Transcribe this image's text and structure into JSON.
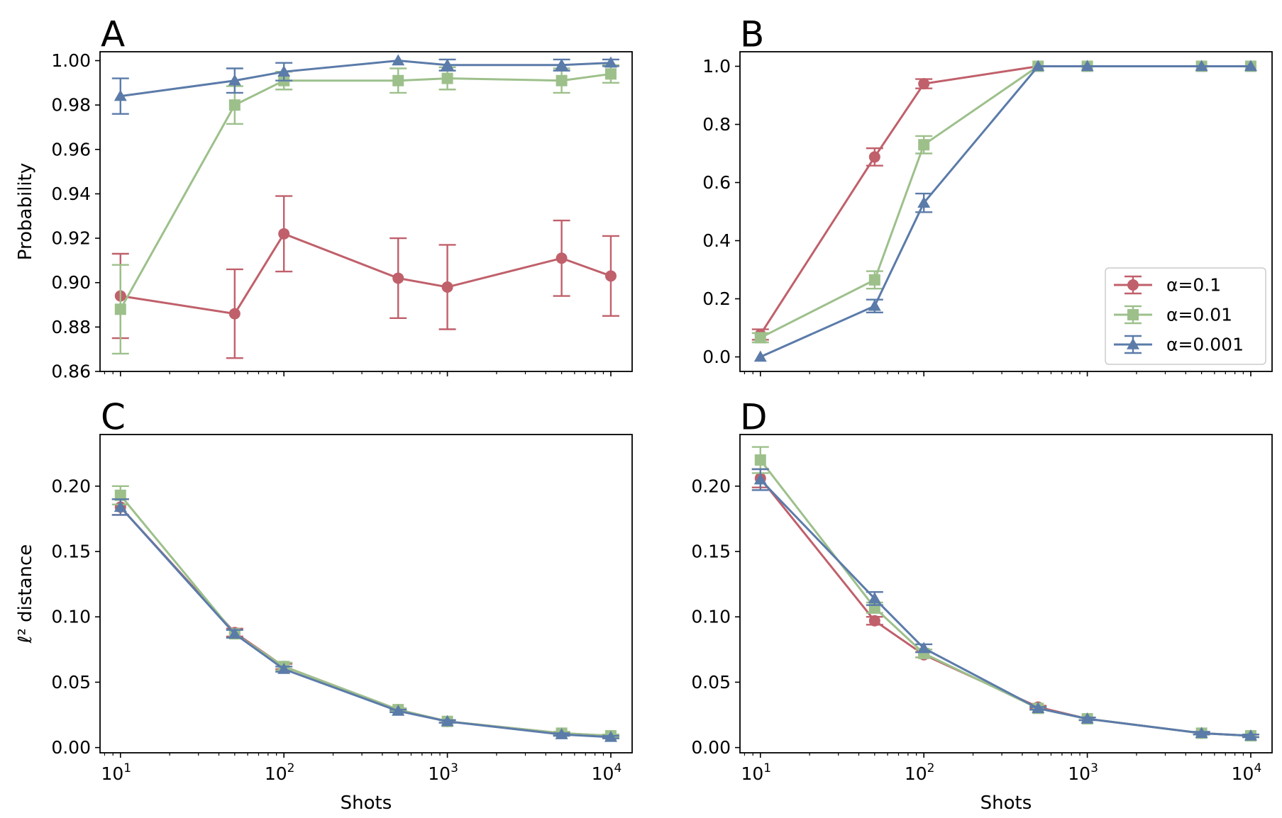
{
  "chart_data": [
    {
      "panel": "A",
      "type": "line",
      "xscale": "log",
      "xlim": [
        7.5,
        13500
      ],
      "ylim": [
        0.86,
        1.004
      ],
      "yticks": [
        0.86,
        0.88,
        0.9,
        0.92,
        0.94,
        0.96,
        0.98,
        1.0
      ],
      "ytick_labels": [
        "0.86",
        "0.88",
        "0.90",
        "0.92",
        "0.94",
        "0.96",
        "0.98",
        "1.00"
      ],
      "xlabel": "",
      "ylabel": "Probability",
      "show_xtick_labels": false,
      "legend": false,
      "x": [
        10,
        50,
        100,
        500,
        1000,
        5000,
        10000
      ],
      "series": [
        {
          "name": "α=0.1",
          "marker": "circle",
          "color": "#c0606b",
          "values": [
            0.894,
            0.886,
            0.922,
            0.902,
            0.898,
            0.911,
            0.903
          ],
          "errors": [
            0.019,
            0.02,
            0.017,
            0.018,
            0.019,
            0.017,
            0.018
          ]
        },
        {
          "name": "α=0.01",
          "marker": "square",
          "color": "#9dc08b",
          "values": [
            0.888,
            0.98,
            0.991,
            0.991,
            0.992,
            0.991,
            0.994
          ],
          "errors": [
            0.02,
            0.0085,
            0.004,
            0.0055,
            0.005,
            0.0055,
            0.004
          ]
        },
        {
          "name": "α=0.001",
          "marker": "triangle",
          "color": "#5b7ba9",
          "values": [
            0.984,
            0.991,
            0.995,
            1.0,
            0.998,
            0.998,
            0.999
          ],
          "errors": [
            0.008,
            0.0055,
            0.004,
            0.0,
            0.0025,
            0.0025,
            0.0015
          ]
        }
      ]
    },
    {
      "panel": "B",
      "type": "line",
      "xscale": "log",
      "xlim": [
        7.5,
        13500
      ],
      "ylim": [
        -0.05,
        1.05
      ],
      "yticks": [
        0.0,
        0.2,
        0.4,
        0.6,
        0.8,
        1.0
      ],
      "ytick_labels": [
        "0.0",
        "0.2",
        "0.4",
        "0.6",
        "0.8",
        "1.0"
      ],
      "xlabel": "",
      "ylabel": "",
      "show_xtick_labels": false,
      "legend": true,
      "legend_location": "lower-right",
      "x": [
        10,
        50,
        100,
        500,
        1000,
        5000,
        10000
      ],
      "series": [
        {
          "name": "α=0.1",
          "marker": "circle",
          "color": "#c0606b",
          "values": [
            0.077,
            0.688,
            0.94,
            1.0,
            1.0,
            1.0,
            1.0
          ],
          "errors": [
            0.018,
            0.03,
            0.016,
            0.0,
            0.0,
            0.0,
            0.0
          ]
        },
        {
          "name": "α=0.01",
          "marker": "square",
          "color": "#9dc08b",
          "values": [
            0.066,
            0.265,
            0.73,
            1.0,
            1.0,
            1.0,
            1.0
          ],
          "errors": [
            0.016,
            0.03,
            0.03,
            0.0,
            0.0,
            0.0,
            0.0
          ]
        },
        {
          "name": "α=0.001",
          "marker": "triangle",
          "color": "#5b7ba9",
          "values": [
            0.0,
            0.175,
            0.53,
            1.0,
            1.0,
            1.0,
            1.0
          ],
          "errors": [
            0.0,
            0.022,
            0.032,
            0.0,
            0.0,
            0.0,
            0.0
          ]
        }
      ]
    },
    {
      "panel": "C",
      "type": "line",
      "xscale": "log",
      "xlim": [
        7.5,
        13500
      ],
      "ylim": [
        -0.004,
        0.2395
      ],
      "yticks": [
        0.0,
        0.05,
        0.1,
        0.15,
        0.2
      ],
      "ytick_labels": [
        "0.00",
        "0.05",
        "0.10",
        "0.15",
        "0.20"
      ],
      "xlabel": "Shots",
      "ylabel": "ℓ² distance",
      "show_xtick_labels": true,
      "legend": false,
      "x": [
        10,
        50,
        100,
        500,
        1000,
        5000,
        10000
      ],
      "series": [
        {
          "name": "α=0.1",
          "marker": "circle",
          "color": "#c0606b",
          "values": [
            0.184,
            0.088,
            0.062,
            0.029,
            0.02,
            0.011,
            0.009
          ],
          "errors": [
            0.006,
            0.003,
            0.002,
            0.001,
            0.001,
            0.001,
            0.001
          ]
        },
        {
          "name": "α=0.01",
          "marker": "square",
          "color": "#9dc08b",
          "values": [
            0.193,
            0.087,
            0.062,
            0.029,
            0.02,
            0.011,
            0.009
          ],
          "errors": [
            0.007,
            0.003,
            0.003,
            0.001,
            0.001,
            0.001,
            0.001
          ]
        },
        {
          "name": "α=0.001",
          "marker": "triangle",
          "color": "#5b7ba9",
          "values": [
            0.184,
            0.087,
            0.06,
            0.028,
            0.02,
            0.01,
            0.008
          ],
          "errors": [
            0.006,
            0.003,
            0.002,
            0.001,
            0.001,
            0.001,
            0.001
          ]
        }
      ]
    },
    {
      "panel": "D",
      "type": "line",
      "xscale": "log",
      "xlim": [
        7.5,
        13500
      ],
      "ylim": [
        -0.004,
        0.2395
      ],
      "yticks": [
        0.0,
        0.05,
        0.1,
        0.15,
        0.2
      ],
      "ytick_labels": [
        "0.00",
        "0.05",
        "0.10",
        "0.15",
        "0.20"
      ],
      "xlabel": "Shots",
      "ylabel": "",
      "show_xtick_labels": true,
      "legend": false,
      "x": [
        10,
        50,
        100,
        500,
        1000,
        5000,
        10000
      ],
      "series": [
        {
          "name": "α=0.1",
          "marker": "circle",
          "color": "#c0606b",
          "values": [
            0.206,
            0.097,
            0.071,
            0.031,
            0.022,
            0.011,
            0.009
          ],
          "errors": [
            0.007,
            0.003,
            0.002,
            0.001,
            0.001,
            0.001,
            0.001
          ]
        },
        {
          "name": "α=0.01",
          "marker": "square",
          "color": "#9dc08b",
          "values": [
            0.22,
            0.107,
            0.072,
            0.03,
            0.022,
            0.011,
            0.009
          ],
          "errors": [
            0.01,
            0.004,
            0.003,
            0.001,
            0.001,
            0.001,
            0.001
          ]
        },
        {
          "name": "α=0.001",
          "marker": "triangle",
          "color": "#5b7ba9",
          "values": [
            0.205,
            0.114,
            0.076,
            0.03,
            0.022,
            0.011,
            0.009
          ],
          "errors": [
            0.008,
            0.005,
            0.003,
            0.001,
            0.001,
            0.001,
            0.001
          ]
        }
      ]
    }
  ],
  "xtick_labels": [
    {
      "base": "10",
      "exp": "1"
    },
    {
      "base": "10",
      "exp": "2"
    },
    {
      "base": "10",
      "exp": "3"
    },
    {
      "base": "10",
      "exp": "4"
    }
  ]
}
